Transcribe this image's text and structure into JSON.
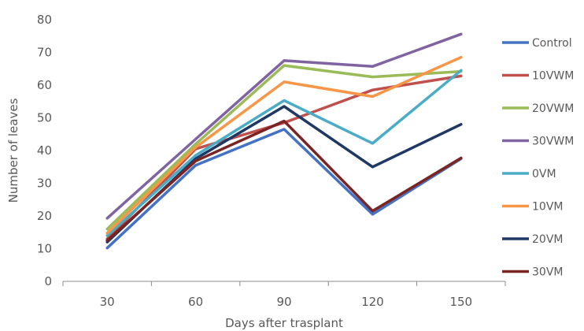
{
  "chart_data": {
    "type": "line",
    "title": "",
    "xlabel": "Days after trasplant",
    "ylabel": "Number of leaves",
    "categories": [
      "30",
      "60",
      "90",
      "120",
      "150"
    ],
    "ylim": [
      0,
      80
    ],
    "yticks": [
      0,
      10,
      20,
      30,
      40,
      50,
      60,
      70,
      80
    ],
    "grid": false,
    "legend_position": "right",
    "series": [
      {
        "name": "Control",
        "color": "#4472c4",
        "values": [
          10.2,
          35.5,
          46.5,
          20.5,
          37.5
        ]
      },
      {
        "name": "10VWM",
        "color": "#c0504d",
        "values": [
          13.0,
          40.5,
          48.5,
          58.5,
          62.8
        ]
      },
      {
        "name": "20VWM",
        "color": "#9bbb59",
        "values": [
          16.0,
          42.0,
          66.0,
          62.5,
          64.2
        ]
      },
      {
        "name": "30VWM",
        "color": "#8064a2",
        "values": [
          19.3,
          43.5,
          67.5,
          65.7,
          75.6
        ]
      },
      {
        "name": "0VM",
        "color": "#4bacc6",
        "values": [
          14.0,
          38.5,
          55.3,
          42.2,
          64.5
        ]
      },
      {
        "name": "10VM",
        "color": "#f79646",
        "values": [
          14.8,
          41.0,
          61.0,
          56.5,
          68.5
        ]
      },
      {
        "name": "20VM",
        "color": "#1f3864",
        "values": [
          12.0,
          37.5,
          53.5,
          35.0,
          48.0
        ]
      },
      {
        "name": "30VM",
        "color": "#7b2424",
        "values": [
          12.5,
          36.8,
          49.0,
          21.5,
          37.7
        ]
      }
    ]
  }
}
